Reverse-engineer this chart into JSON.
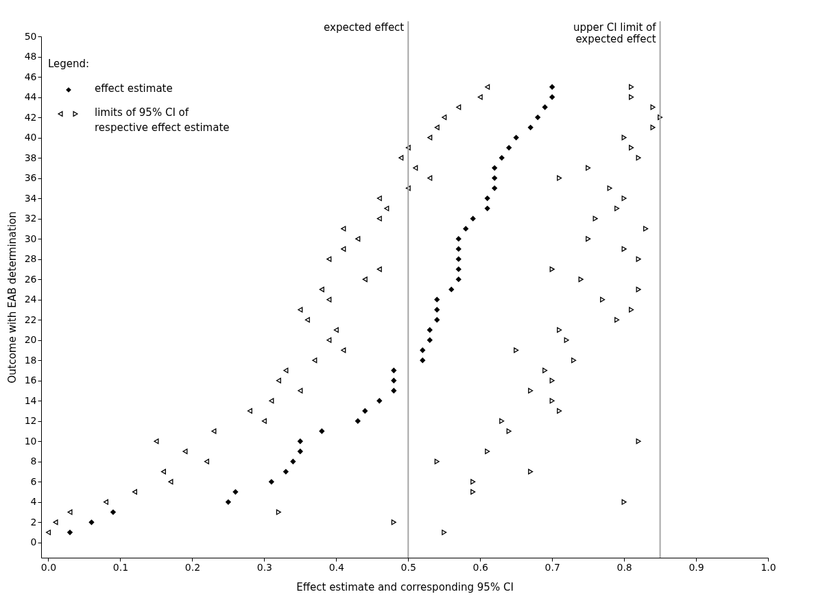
{
  "chart_data": {
    "type": "scatter",
    "xlabel": "Effect estimate and corresponding 95% CI",
    "ylabel": "Outcome with EAB determination",
    "legend_title": "Legend:",
    "legend": "top left",
    "series": [
      {
        "name": "effect estimate",
        "color": "#000000",
        "marker": "diamond",
        "x": [
          0.03,
          0.06,
          0.09,
          0.25,
          0.26,
          0.31,
          0.33,
          0.34,
          0.35,
          0.35,
          0.38,
          0.43,
          0.44,
          0.46,
          0.48,
          0.48,
          0.48,
          0.52,
          0.52,
          0.53,
          0.53,
          0.54,
          0.54,
          0.54,
          0.56,
          0.57,
          0.57,
          0.57,
          0.57,
          0.57,
          0.58,
          0.59,
          0.61,
          0.61,
          0.62,
          0.62,
          0.62,
          0.63,
          0.64,
          0.65,
          0.67,
          0.68,
          0.69,
          0.7,
          0.7
        ],
        "values": [
          1,
          2,
          3,
          4,
          5,
          6,
          7,
          8,
          9,
          10,
          11,
          12,
          13,
          14,
          15,
          16,
          17,
          18,
          19,
          20,
          21,
          22,
          23,
          24,
          25,
          26,
          27,
          28,
          29,
          30,
          31,
          32,
          33,
          34,
          35,
          36,
          37,
          38,
          39,
          40,
          41,
          42,
          43,
          44,
          45
        ]
      },
      {
        "name": "limits of 95% CI of\nrespective effect estimate",
        "color": "#000000",
        "marker": "triangle",
        "x": [
          0.0,
          0.01,
          0.03,
          0.08,
          0.12,
          0.17,
          0.16,
          0.22,
          0.19,
          0.15,
          0.23,
          0.3,
          0.28,
          0.31,
          0.35,
          0.32,
          0.33,
          0.37,
          0.41,
          0.39,
          0.4,
          0.36,
          0.35,
          0.39,
          0.38,
          0.44,
          0.46,
          0.39,
          0.41,
          0.43,
          0.41,
          0.46,
          0.47,
          0.46,
          0.5,
          0.53,
          0.51,
          0.49,
          0.5,
          0.53,
          0.54,
          0.55,
          0.57,
          0.6,
          0.61
        ],
        "values": [
          1,
          2,
          3,
          4,
          5,
          6,
          7,
          8,
          9,
          10,
          11,
          12,
          13,
          14,
          15,
          16,
          17,
          18,
          19,
          20,
          21,
          22,
          23,
          24,
          25,
          26,
          27,
          28,
          29,
          30,
          31,
          32,
          33,
          34,
          35,
          36,
          37,
          38,
          39,
          40,
          41,
          42,
          43,
          44,
          45
        ]
      },
      {
        "color": "#000000",
        "marker": "triangle",
        "x": [
          0.55,
          0.48,
          0.32,
          0.8,
          0.59,
          0.59,
          0.67,
          0.54,
          0.61,
          0.82,
          0.64,
          0.63,
          0.71,
          0.7,
          0.67,
          0.7,
          0.69,
          0.73,
          0.65,
          0.72,
          0.71,
          0.79,
          0.81,
          0.77,
          0.82,
          0.74,
          0.7,
          0.82,
          0.8,
          0.75,
          0.83,
          0.76,
          0.79,
          0.8,
          0.78,
          0.71,
          0.75,
          0.82,
          0.81,
          0.8,
          0.84,
          0.85,
          0.84,
          0.81,
          0.81
        ],
        "values": [
          1,
          2,
          3,
          4,
          5,
          6,
          7,
          8,
          9,
          10,
          11,
          12,
          13,
          14,
          15,
          16,
          17,
          18,
          19,
          20,
          21,
          22,
          23,
          24,
          25,
          26,
          27,
          28,
          29,
          30,
          31,
          32,
          33,
          34,
          35,
          36,
          37,
          38,
          39,
          40,
          41,
          42,
          43,
          44,
          45
        ]
      }
    ],
    "ref_lines": [
      {
        "axis": "x",
        "value": 0.5,
        "label": "expected effect",
        "color": "#a6a6a6"
      },
      {
        "axis": "x",
        "value": 0.85,
        "label": "upper CI limit of\nexpected effect",
        "color": "#a6a6a6"
      }
    ],
    "xlim": [
      -0.01,
      1.0
    ],
    "xticks": [
      {
        "value": 0,
        "label": "0.0"
      },
      {
        "value": 0.1,
        "label": "0.1"
      },
      {
        "value": 0.2,
        "label": "0.2"
      },
      {
        "value": 0.3,
        "label": "0.3"
      },
      {
        "value": 0.4,
        "label": "0.4"
      },
      {
        "value": 0.5,
        "label": "0.5"
      },
      {
        "value": 0.6,
        "label": "0.6"
      },
      {
        "value": 0.7,
        "label": "0.7"
      },
      {
        "value": 0.8,
        "label": "0.8"
      },
      {
        "value": 0.9,
        "label": "0.9"
      },
      {
        "value": 1,
        "label": "1.0"
      }
    ],
    "ylim": [
      -1.5,
      50
    ],
    "yticks": [
      0,
      2,
      4,
      6,
      8,
      10,
      12,
      14,
      16,
      18,
      20,
      22,
      24,
      26,
      28,
      30,
      32,
      34,
      36,
      38,
      40,
      42,
      44,
      46,
      48,
      50
    ],
    "grid": false
  }
}
